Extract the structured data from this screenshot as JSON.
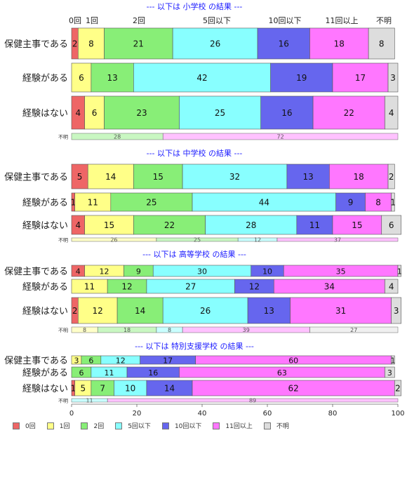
{
  "chart_data": {
    "type": "bar",
    "orientation": "horizontal-stacked-percent",
    "x_ticks": [
      "0",
      "20",
      "40",
      "60",
      "80",
      "100"
    ],
    "xlim": [
      0,
      100
    ],
    "category_header_labels": [
      "0回",
      "1回",
      "2回",
      "5回以下",
      "10回以下",
      "11回以上",
      "不明"
    ],
    "legend": [
      {
        "name": "0回",
        "color": "#ee6666"
      },
      {
        "name": "1回",
        "color": "#ffff88"
      },
      {
        "name": "2回",
        "color": "#88ee77"
      },
      {
        "name": "5回以下",
        "color": "#88ffff"
      },
      {
        "name": "10回以下",
        "color": "#6666ee"
      },
      {
        "name": "11回以上",
        "color": "#ff77ff"
      },
      {
        "name": "不明",
        "color": "#dddddd"
      }
    ],
    "panels": [
      {
        "title": "--- 以下は 小学校 の結果 ---",
        "rows": [
          {
            "label": "保健主事である",
            "values": [
              2,
              8,
              21,
              26,
              16,
              18,
              8
            ]
          },
          {
            "label": "経験がある",
            "values": [
              0,
              6,
              13,
              42,
              19,
              17,
              3
            ]
          },
          {
            "label": "経験はない",
            "values": [
              4,
              6,
              23,
              25,
              16,
              22,
              4
            ]
          }
        ],
        "unknown_row": {
          "label": "不明",
          "values": [
            0,
            0,
            28,
            0,
            0,
            72,
            0
          ]
        }
      },
      {
        "title": "--- 以下は 中学校 の結果 ---",
        "rows": [
          {
            "label": "保健主事である",
            "values": [
              5,
              14,
              15,
              32,
              13,
              18,
              2
            ]
          },
          {
            "label": "経験がある",
            "values": [
              1,
              11,
              25,
              44,
              9,
              8,
              1
            ]
          },
          {
            "label": "経験はない",
            "values": [
              4,
              15,
              22,
              28,
              11,
              15,
              6
            ]
          }
        ],
        "unknown_row": {
          "label": "不明",
          "values": [
            0,
            26,
            25,
            12,
            0,
            37,
            0
          ]
        }
      },
      {
        "title": "--- 以下は 高等学校 の結果 ---",
        "rows": [
          {
            "label": "保健主事である",
            "values": [
              4,
              12,
              9,
              30,
              10,
              35,
              1
            ]
          },
          {
            "label": "経験がある",
            "values": [
              0,
              11,
              12,
              27,
              12,
              34,
              4
            ]
          },
          {
            "label": "経験はない",
            "values": [
              2,
              12,
              14,
              26,
              13,
              31,
              3
            ]
          }
        ],
        "unknown_row": {
          "label": "不明",
          "values": [
            0,
            8,
            18,
            8,
            0,
            39,
            27
          ]
        }
      },
      {
        "title": "--- 以下は 特別支援学校 の結果 ---",
        "rows": [
          {
            "label": "保健主事である",
            "values": [
              0,
              3,
              6,
              12,
              17,
              60,
              1
            ]
          },
          {
            "label": "経験がある",
            "values": [
              0,
              0,
              6,
              11,
              16,
              63,
              3
            ]
          },
          {
            "label": "経験はない",
            "values": [
              1,
              5,
              7,
              10,
              14,
              62,
              2
            ]
          }
        ],
        "unknown_row": {
          "label": "不明",
          "values": [
            0,
            0,
            0,
            11,
            0,
            89,
            0
          ]
        }
      }
    ]
  }
}
